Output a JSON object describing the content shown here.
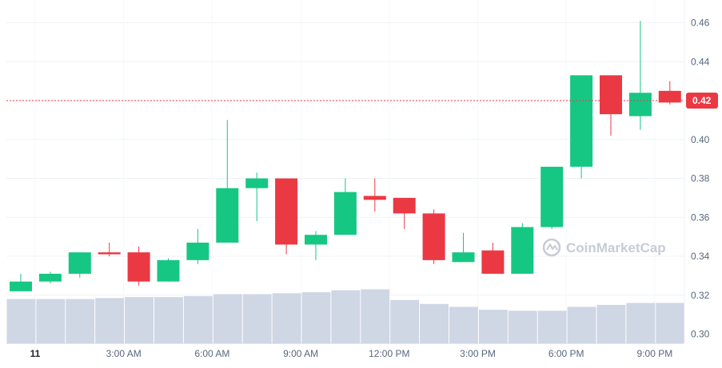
{
  "watermark": "CoinMarketCap",
  "chart_data": {
    "type": "candlestick",
    "title": "",
    "xlabel": "",
    "ylabel": "",
    "ylim": [
      0.295,
      0.47
    ],
    "y_ticks": [
      "0.30",
      "0.32",
      "0.34",
      "0.36",
      "0.38",
      "0.40",
      "0.42",
      "0.44",
      "0.46"
    ],
    "y_tick_values": [
      0.3,
      0.32,
      0.34,
      0.36,
      0.38,
      0.4,
      0.42,
      0.44,
      0.46
    ],
    "x_ticks": [
      "11",
      "3:00 AM",
      "6:00 AM",
      "9:00 AM",
      "12:00 PM",
      "3:00 PM",
      "6:00 PM",
      "9:00 PM"
    ],
    "x_tick_hours": [
      0,
      3,
      6,
      9,
      12,
      15,
      18,
      21
    ],
    "grid": true,
    "current_price": 0.42,
    "current_price_label": "0.42",
    "up_color": "#16c784",
    "down_color": "#ea3943",
    "volume_color": "#cfd6e4",
    "candles": [
      {
        "hour": 0,
        "open": 0.322,
        "high": 0.331,
        "low": 0.322,
        "close": 0.327,
        "volume": 0.318
      },
      {
        "hour": 1,
        "open": 0.327,
        "high": 0.332,
        "low": 0.326,
        "close": 0.331,
        "volume": 0.318
      },
      {
        "hour": 2,
        "open": 0.331,
        "high": 0.342,
        "low": 0.329,
        "close": 0.342,
        "volume": 0.318
      },
      {
        "hour": 3,
        "open": 0.342,
        "high": 0.347,
        "low": 0.34,
        "close": 0.341,
        "volume": 0.3185
      },
      {
        "hour": 4,
        "open": 0.342,
        "high": 0.345,
        "low": 0.325,
        "close": 0.327,
        "volume": 0.319
      },
      {
        "hour": 5,
        "open": 0.327,
        "high": 0.339,
        "low": 0.327,
        "close": 0.338,
        "volume": 0.319
      },
      {
        "hour": 6,
        "open": 0.338,
        "high": 0.354,
        "low": 0.336,
        "close": 0.347,
        "volume": 0.3195
      },
      {
        "hour": 7,
        "open": 0.347,
        "high": 0.41,
        "low": 0.347,
        "close": 0.375,
        "volume": 0.3205
      },
      {
        "hour": 8,
        "open": 0.375,
        "high": 0.383,
        "low": 0.358,
        "close": 0.38,
        "volume": 0.3205
      },
      {
        "hour": 9,
        "open": 0.38,
        "high": 0.38,
        "low": 0.341,
        "close": 0.346,
        "volume": 0.321
      },
      {
        "hour": 10,
        "open": 0.346,
        "high": 0.353,
        "low": 0.338,
        "close": 0.351,
        "volume": 0.3215
      },
      {
        "hour": 11,
        "open": 0.351,
        "high": 0.38,
        "low": 0.351,
        "close": 0.373,
        "volume": 0.3225
      },
      {
        "hour": 12,
        "open": 0.371,
        "high": 0.38,
        "low": 0.363,
        "close": 0.369,
        "volume": 0.323
      },
      {
        "hour": 13,
        "open": 0.37,
        "high": 0.37,
        "low": 0.354,
        "close": 0.362,
        "volume": 0.3175
      },
      {
        "hour": 14,
        "open": 0.362,
        "high": 0.364,
        "low": 0.336,
        "close": 0.338,
        "volume": 0.3155
      },
      {
        "hour": 15,
        "open": 0.337,
        "high": 0.352,
        "low": 0.337,
        "close": 0.342,
        "volume": 0.314
      },
      {
        "hour": 16,
        "open": 0.343,
        "high": 0.347,
        "low": 0.331,
        "close": 0.331,
        "volume": 0.3125
      },
      {
        "hour": 17,
        "open": 0.331,
        "high": 0.357,
        "low": 0.331,
        "close": 0.355,
        "volume": 0.312
      },
      {
        "hour": 18,
        "open": 0.355,
        "high": 0.386,
        "low": 0.354,
        "close": 0.386,
        "volume": 0.312
      },
      {
        "hour": 19,
        "open": 0.386,
        "high": 0.433,
        "low": 0.38,
        "close": 0.433,
        "volume": 0.314
      },
      {
        "hour": 20,
        "open": 0.433,
        "high": 0.433,
        "low": 0.402,
        "close": 0.413,
        "volume": 0.315
      },
      {
        "hour": 21,
        "open": 0.412,
        "high": 0.461,
        "low": 0.405,
        "close": 0.424,
        "volume": 0.316
      },
      {
        "hour": 22,
        "open": 0.425,
        "high": 0.43,
        "low": 0.418,
        "close": 0.419,
        "volume": 0.316
      }
    ]
  }
}
